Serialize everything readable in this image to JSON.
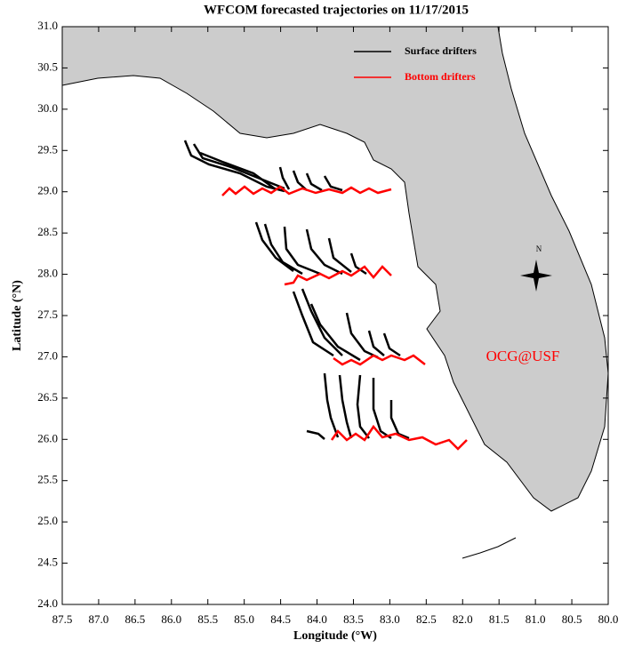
{
  "chart_data": {
    "type": "map",
    "title": "WFCOM forecasted trajectories on 11/17/2015",
    "x_label": "Longitude (°W)",
    "y_label": "Latitude (°N)",
    "xlim": [
      87.5,
      80.0
    ],
    "ylim": [
      24.0,
      31.0
    ],
    "xticks": [
      87.5,
      {
        "value": 87,
        "label": "87.0"
      },
      86.5,
      {
        "value": 86,
        "label": "86.0"
      },
      85.5,
      {
        "value": 85,
        "label": "85.0"
      },
      84.5,
      {
        "value": 84,
        "label": "84.0"
      },
      83.5,
      {
        "value": 83,
        "label": "83.0"
      },
      82.5,
      {
        "value": 82,
        "label": "82.0"
      },
      81.5,
      {
        "value": 81,
        "label": "81.0"
      },
      80.5,
      {
        "value": 80,
        "label": "80.0"
      }
    ],
    "yticks": [
      {
        "value": 24,
        "label": "24.0"
      },
      24.5,
      {
        "value": 25,
        "label": "25.0"
      },
      25.5,
      {
        "value": 26,
        "label": "26.0"
      },
      26.5,
      {
        "value": 27,
        "label": "27.0"
      },
      27.5,
      {
        "value": 28,
        "label": "28.0"
      },
      28.5,
      {
        "value": 29,
        "label": "29.0"
      },
      29.5,
      {
        "value": 30,
        "label": "30.0"
      },
      30.5,
      {
        "value": 31,
        "label": "31.0"
      }
    ],
    "series": [
      {
        "name": "Surface drifters",
        "color": "#000000"
      },
      {
        "name": "Bottom drifters",
        "color": "#ff0000"
      }
    ],
    "annotations": [
      "OCG@USF",
      "N"
    ]
  }
}
